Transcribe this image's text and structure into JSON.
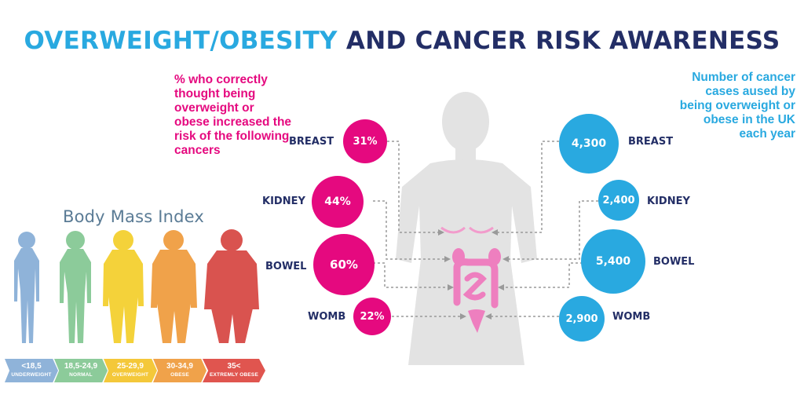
{
  "title": {
    "part1": "OVERWEIGHT/OBESITY",
    "part2": "AND CANCER RISK AWARENESS"
  },
  "left_note": "% who correctly thought being overweight or obese increased the risk of the following cancers",
  "right_note": "Number of cancer cases aused by being overweight or obese in the UK each year",
  "bmi": {
    "title": "Body Mass Index",
    "figure_colors": [
      "#8fb3d9",
      "#8ccb9a",
      "#f4d23a",
      "#f0a24a",
      "#d9534f"
    ],
    "categories": [
      {
        "range": "<18,5",
        "label": "UNDERWEIGHT",
        "color": "#8fb3d9"
      },
      {
        "range": "18,5-24,9",
        "label": "NORMAL",
        "color": "#8ccb9a"
      },
      {
        "range": "25-29,9",
        "label": "OVERWEIGHT",
        "color": "#f4c83a"
      },
      {
        "range": "30-34,9",
        "label": "OBESE",
        "color": "#f0a24a"
      },
      {
        "range": "35<",
        "label": "EXTREMLY OBESE",
        "color": "#e0554f"
      }
    ]
  },
  "cancers": [
    {
      "name": "BREAST",
      "awareness": "31%",
      "awareness_value": 31,
      "cases": "4,300",
      "cases_value": 4300
    },
    {
      "name": "KIDNEY",
      "awareness": "44%",
      "awareness_value": 44,
      "cases": "2,400",
      "cases_value": 2400
    },
    {
      "name": "BOWEL",
      "awareness": "60%",
      "awareness_value": 60,
      "cases": "5,400",
      "cases_value": 5400
    },
    {
      "name": "WOMB",
      "awareness": "22%",
      "awareness_value": 22,
      "cases": "2,900",
      "cases_value": 2900
    }
  ],
  "colors": {
    "pink": "#e5097f",
    "blue": "#29a9e0",
    "navy": "#232e66",
    "silhouette": "#e3e3e3"
  }
}
